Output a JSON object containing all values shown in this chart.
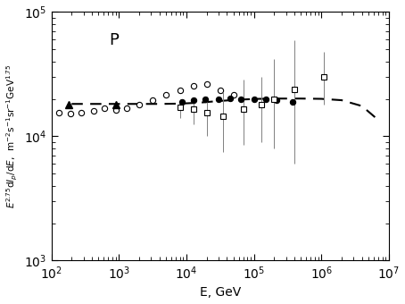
{
  "title": "P",
  "xlabel": "E, GeV",
  "xlim": [
    100.0,
    10000000.0
  ],
  "ylim": [
    1000.0,
    100000.0
  ],
  "open_circles": {
    "x": [
      130,
      190,
      280,
      420,
      620,
      900,
      1300,
      2000,
      3200,
      5000,
      8000,
      13000,
      20000,
      32000,
      50000
    ],
    "y": [
      15500,
      15200,
      15500,
      16000,
      16800,
      16200,
      16800,
      18000,
      19500,
      21500,
      23500,
      25500,
      26500,
      23500,
      21500
    ]
  },
  "filled_triangles": {
    "x": [
      180,
      900
    ],
    "y": [
      18000,
      18000
    ]
  },
  "filled_circles": {
    "x": [
      8500,
      13000,
      19000,
      30000,
      45000,
      65000,
      100000,
      150000,
      220000,
      380000
    ],
    "y": [
      19000,
      19500,
      19800,
      20000,
      20200,
      20000,
      20000,
      19800,
      19500,
      19000
    ],
    "yerr_lo": [
      600,
      600,
      600,
      700,
      700,
      700,
      800,
      900,
      900,
      1000
    ],
    "yerr_hi": [
      600,
      600,
      600,
      700,
      700,
      700,
      800,
      900,
      900,
      1000
    ]
  },
  "open_squares": {
    "x": [
      8000,
      13000,
      20000,
      35000,
      70000,
      130000,
      200000,
      400000,
      1100000
    ],
    "y": [
      17000,
      16500,
      15500,
      14500,
      16500,
      18000,
      20000,
      24000,
      30000
    ],
    "yerr_lo": [
      3000,
      4000,
      5500,
      7000,
      8000,
      9000,
      12000,
      18000,
      12000
    ],
    "yerr_hi": [
      3000,
      4000,
      5500,
      8000,
      12000,
      12000,
      22000,
      35000,
      18000
    ]
  },
  "dashed_line": {
    "x": [
      200,
      400,
      700,
      1200,
      2000,
      4000,
      8000,
      15000,
      30000,
      60000,
      120000,
      250000,
      500000,
      1000000,
      2000000,
      4000000,
      7000000
    ],
    "y": [
      18200,
      18200,
      18200,
      18200,
      18200,
      18200,
      18300,
      18600,
      19200,
      19700,
      20000,
      20100,
      20100,
      20000,
      19500,
      17500,
      13500
    ]
  },
  "background_color": "#ffffff"
}
